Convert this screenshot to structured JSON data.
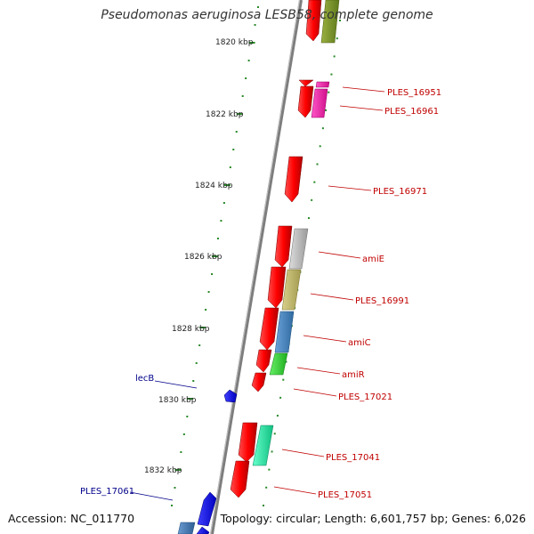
{
  "title": "Pseudomonas aeruginosa LESB58, complete genome",
  "footer": {
    "accession": "Accession: NC_011770",
    "stats": "Topology: circular; Length: 6,601,757 bp; Genes: 6,026"
  },
  "colors": {
    "backbone": "#8a8a8a",
    "tick": "#2a8a2a",
    "label_red": "#c00000",
    "label_blue": "#00008b"
  },
  "ticks": [
    {
      "label": "1820 kbp"
    },
    {
      "label": "1822 kbp"
    },
    {
      "label": "1824 kbp"
    },
    {
      "label": "1826 kbp"
    },
    {
      "label": "1828 kbp"
    },
    {
      "label": "1830 kbp"
    },
    {
      "label": "1832 kbp"
    }
  ],
  "gene_labels": [
    {
      "name": "PLES_16951",
      "color": "#c00000"
    },
    {
      "name": "PLES_16961",
      "color": "#c00000"
    },
    {
      "name": "PLES_16971",
      "color": "#c00000"
    },
    {
      "name": "amiE",
      "color": "#c00000"
    },
    {
      "name": "PLES_16991",
      "color": "#c00000"
    },
    {
      "name": "amiC",
      "color": "#c00000"
    },
    {
      "name": "amiR",
      "color": "#c00000"
    },
    {
      "name": "PLES_17021",
      "color": "#c00000"
    },
    {
      "name": "PLES_17041",
      "color": "#c00000"
    },
    {
      "name": "PLES_17051",
      "color": "#c00000"
    },
    {
      "name": "lecB",
      "color": "#00008b"
    },
    {
      "name": "PLES_17061",
      "color": "#00008b"
    }
  ]
}
